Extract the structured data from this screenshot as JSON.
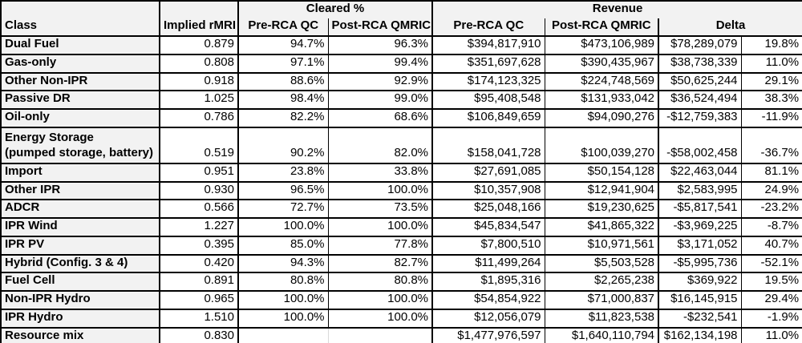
{
  "colors": {
    "header_bg": "#f2f2f2",
    "class_col_bg": "#f2f2f2",
    "border": "#000000",
    "faint_gridline": "#d9d9d9",
    "text": "#000000"
  },
  "chart_data": {
    "type": "table",
    "column_groups": {
      "cleared": "Cleared %",
      "revenue": "Revenue"
    },
    "headers": {
      "class": "Class",
      "implied_rmri": "Implied rMRI",
      "cleared_pre": "Pre-RCA QC",
      "cleared_post": "Post-RCA QMRIC",
      "rev_pre": "Pre-RCA QC",
      "rev_post": "Post-RCA QMRIC",
      "delta": "Delta"
    },
    "rows": [
      {
        "class": "Dual Fuel",
        "implied_rmri": "0.879",
        "cleared_pre": "94.7%",
        "cleared_post": "96.3%",
        "rev_pre": "$394,817,910",
        "rev_post": "$473,106,989",
        "delta_usd": "$78,289,079",
        "delta_pct": "19.8%"
      },
      {
        "class": "Gas-only",
        "implied_rmri": "0.808",
        "cleared_pre": "97.1%",
        "cleared_post": "99.4%",
        "rev_pre": "$351,697,628",
        "rev_post": "$390,435,967",
        "delta_usd": "$38,738,339",
        "delta_pct": "11.0%"
      },
      {
        "class": "Other Non-IPR",
        "implied_rmri": "0.918",
        "cleared_pre": "88.6%",
        "cleared_post": "92.9%",
        "rev_pre": "$174,123,325",
        "rev_post": "$224,748,569",
        "delta_usd": "$50,625,244",
        "delta_pct": "29.1%"
      },
      {
        "class": "Passive DR",
        "implied_rmri": "1.025",
        "cleared_pre": "98.4%",
        "cleared_post": "99.0%",
        "rev_pre": "$95,408,548",
        "rev_post": "$131,933,042",
        "delta_usd": "$36,524,494",
        "delta_pct": "38.3%"
      },
      {
        "class": "Oil-only",
        "implied_rmri": "0.786",
        "cleared_pre": "82.2%",
        "cleared_post": "68.6%",
        "rev_pre": "$106,849,659",
        "rev_post": "$94,090,276",
        "delta_usd": "-$12,759,383",
        "delta_pct": "-11.9%"
      },
      {
        "class": "Energy Storage\n(pumped storage, battery)",
        "implied_rmri": "0.519",
        "cleared_pre": "90.2%",
        "cleared_post": "82.0%",
        "rev_pre": "$158,041,728",
        "rev_post": "$100,039,270",
        "delta_usd": "-$58,002,458",
        "delta_pct": "-36.7%",
        "tall": true
      },
      {
        "class": "Import",
        "implied_rmri": "0.951",
        "cleared_pre": "23.8%",
        "cleared_post": "33.8%",
        "rev_pre": "$27,691,085",
        "rev_post": "$50,154,128",
        "delta_usd": "$22,463,044",
        "delta_pct": "81.1%"
      },
      {
        "class": "Other IPR",
        "implied_rmri": "0.930",
        "cleared_pre": "96.5%",
        "cleared_post": "100.0%",
        "rev_pre": "$10,357,908",
        "rev_post": "$12,941,904",
        "delta_usd": "$2,583,995",
        "delta_pct": "24.9%"
      },
      {
        "class": "ADCR",
        "implied_rmri": "0.566",
        "cleared_pre": "72.7%",
        "cleared_post": "73.5%",
        "rev_pre": "$25,048,166",
        "rev_post": "$19,230,625",
        "delta_usd": "-$5,817,541",
        "delta_pct": "-23.2%"
      },
      {
        "class": "IPR Wind",
        "implied_rmri": "1.227",
        "cleared_pre": "100.0%",
        "cleared_post": "100.0%",
        "rev_pre": "$45,834,547",
        "rev_post": "$41,865,322",
        "delta_usd": "-$3,969,225",
        "delta_pct": "-8.7%"
      },
      {
        "class": "IPR PV",
        "implied_rmri": "0.395",
        "cleared_pre": "85.0%",
        "cleared_post": "77.8%",
        "rev_pre": "$7,800,510",
        "rev_post": "$10,971,561",
        "delta_usd": "$3,171,052",
        "delta_pct": "40.7%"
      },
      {
        "class": "Hybrid (Config. 3 & 4)",
        "implied_rmri": "0.420",
        "cleared_pre": "94.3%",
        "cleared_post": "82.7%",
        "rev_pre": "$11,499,264",
        "rev_post": "$5,503,528",
        "delta_usd": "-$5,995,736",
        "delta_pct": "-52.1%"
      },
      {
        "class": "Fuel Cell",
        "implied_rmri": "0.891",
        "cleared_pre": "80.8%",
        "cleared_post": "80.8%",
        "rev_pre": "$1,895,316",
        "rev_post": "$2,265,238",
        "delta_usd": "$369,922",
        "delta_pct": "19.5%"
      },
      {
        "class": "Non-IPR Hydro",
        "implied_rmri": "0.965",
        "cleared_pre": "100.0%",
        "cleared_post": "100.0%",
        "rev_pre": "$54,854,922",
        "rev_post": "$71,000,837",
        "delta_usd": "$16,145,915",
        "delta_pct": "29.4%"
      },
      {
        "class": "IPR Hydro",
        "implied_rmri": "1.510",
        "cleared_pre": "100.0%",
        "cleared_post": "100.0%",
        "rev_pre": "$12,056,079",
        "rev_post": "$11,823,538",
        "delta_usd": "-$232,541",
        "delta_pct": "-1.9%"
      },
      {
        "class": "Resource mix",
        "implied_rmri": "0.830",
        "cleared_pre": "",
        "cleared_post": "",
        "rev_pre": "$1,477,976,597",
        "rev_post": "$1,640,110,794",
        "delta_usd": "$162,134,198",
        "delta_pct": "11.0%"
      }
    ]
  }
}
